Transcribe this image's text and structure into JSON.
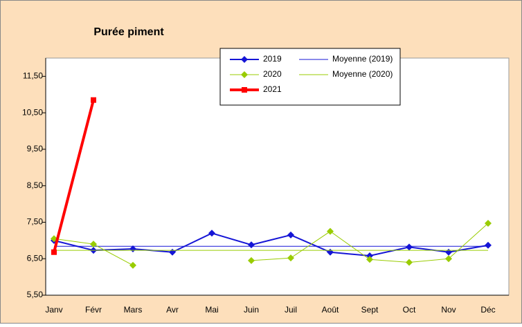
{
  "chart_data": {
    "type": "line",
    "title": "Purée piment",
    "categories": [
      "Janv",
      "Févr",
      "Mars",
      "Avr",
      "Mai",
      "Juin",
      "Juil",
      "Août",
      "Sept",
      "Oct",
      "Nov",
      "Déc"
    ],
    "series": [
      {
        "name": "2019",
        "color": "#1515d6",
        "width": 2,
        "marker": "diamond",
        "values": [
          7.0,
          6.73,
          6.77,
          6.68,
          7.2,
          6.88,
          7.15,
          6.68,
          6.58,
          6.82,
          6.68,
          6.87
        ]
      },
      {
        "name": "Moyenne (2019)",
        "color": "#1515d6",
        "width": 1,
        "marker": "none",
        "values": [
          6.84,
          6.84,
          6.84,
          6.84,
          6.84,
          6.84,
          6.84,
          6.84,
          6.84,
          6.84,
          6.84,
          6.84
        ]
      },
      {
        "name": "2020",
        "color": "#99cc00",
        "width": 1,
        "marker": "diamond",
        "values": [
          7.05,
          6.9,
          6.32,
          null,
          null,
          6.45,
          6.52,
          7.25,
          6.48,
          6.4,
          6.5,
          7.47
        ]
      },
      {
        "name": "Moyenne (2020)",
        "color": "#99cc00",
        "width": 1,
        "marker": "none",
        "values": [
          6.73,
          6.73,
          6.73,
          6.73,
          6.73,
          6.73,
          6.73,
          6.73,
          6.73,
          6.73,
          6.73,
          6.73
        ]
      },
      {
        "name": "2021",
        "color": "#ff0000",
        "width": 4,
        "marker": "square",
        "values": [
          6.68,
          10.85,
          null,
          null,
          null,
          null,
          null,
          null,
          null,
          null,
          null,
          null
        ]
      }
    ],
    "ylim": [
      5.5,
      12
    ],
    "yticks": [
      {
        "value": 5.5,
        "label": "5,50"
      },
      {
        "value": 6.5,
        "label": "6,50"
      },
      {
        "value": 7.5,
        "label": "7,50"
      },
      {
        "value": 8.5,
        "label": "8,50"
      },
      {
        "value": 9.5,
        "label": "9,50"
      },
      {
        "value": 10.5,
        "label": "10,50"
      },
      {
        "value": 11.5,
        "label": "11,50"
      }
    ],
    "grid": false
  }
}
